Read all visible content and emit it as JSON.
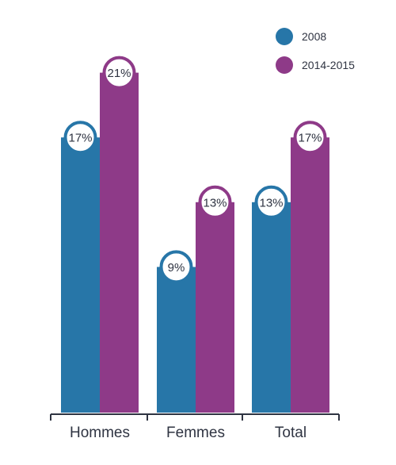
{
  "chart_data": {
    "type": "bar",
    "categories": [
      "Hommes",
      "Femmes",
      "Total"
    ],
    "series": [
      {
        "name": "2008",
        "values": [
          17,
          9,
          13
        ],
        "labels": [
          "17%",
          "9%",
          "13%"
        ],
        "color": "#2776a8"
      },
      {
        "name": "2014-2015",
        "values": [
          21,
          13,
          17
        ],
        "labels": [
          "21%",
          "13%",
          "17%"
        ],
        "color": "#8e3a88"
      }
    ],
    "ylim": [
      0,
      25
    ],
    "grid": false,
    "legend": "top-right",
    "axis_color": "#2f3442"
  }
}
